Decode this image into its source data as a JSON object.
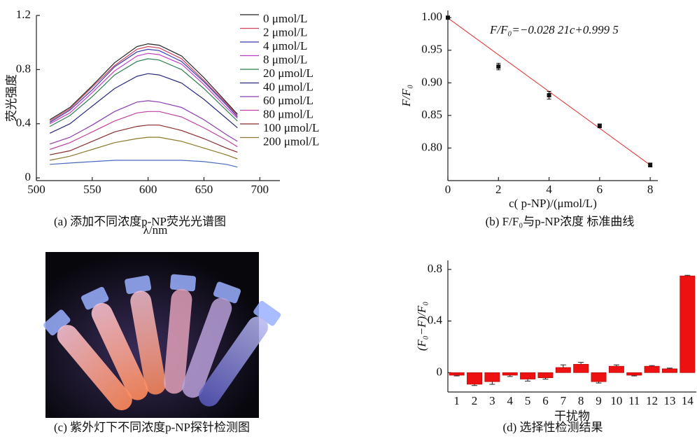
{
  "chart_data": [
    {
      "type": "line",
      "caption": "(a)  添加不同浓度p-NP荧光光谱图",
      "xlabel": "λ/nm",
      "ylabel": "荧光强度",
      "x": [
        512,
        530,
        550,
        570,
        590,
        600,
        610,
        630,
        650,
        670,
        680
      ],
      "xlim": [
        500,
        718
      ],
      "xticks": [
        500,
        550,
        600,
        650,
        700
      ],
      "ylim": [
        -0.02,
        1.2
      ],
      "yticks": [
        0,
        0.4,
        0.8,
        1.2
      ],
      "series": [
        {
          "name": "0 μmol/L",
          "color": "#222222",
          "values": [
            0.43,
            0.52,
            0.68,
            0.85,
            0.97,
            0.99,
            0.98,
            0.9,
            0.74,
            0.56,
            0.47
          ]
        },
        {
          "name": "2 μmol/L",
          "color": "#d0425e",
          "values": [
            0.42,
            0.51,
            0.67,
            0.83,
            0.95,
            0.97,
            0.96,
            0.88,
            0.72,
            0.55,
            0.46
          ]
        },
        {
          "name": "4 μmol/L",
          "color": "#3a3ab0",
          "values": [
            0.41,
            0.5,
            0.65,
            0.82,
            0.93,
            0.95,
            0.94,
            0.86,
            0.71,
            0.54,
            0.45
          ]
        },
        {
          "name": "8 μmol/L",
          "color": "#c03cc8",
          "values": [
            0.4,
            0.48,
            0.63,
            0.79,
            0.9,
            0.92,
            0.91,
            0.84,
            0.69,
            0.52,
            0.44
          ]
        },
        {
          "name": "20 μmol/L",
          "color": "#2e7d4f",
          "values": [
            0.38,
            0.46,
            0.6,
            0.76,
            0.86,
            0.88,
            0.87,
            0.8,
            0.66,
            0.5,
            0.42
          ]
        },
        {
          "name": "40 μmol/L",
          "color": "#2a2a80",
          "values": [
            0.33,
            0.4,
            0.53,
            0.66,
            0.75,
            0.77,
            0.76,
            0.7,
            0.58,
            0.44,
            0.37
          ]
        },
        {
          "name": "60 μmol/L",
          "color": "#8a3cb0",
          "values": [
            0.25,
            0.3,
            0.39,
            0.49,
            0.56,
            0.57,
            0.56,
            0.52,
            0.43,
            0.32,
            0.27
          ]
        },
        {
          "name": "80 μmol/L",
          "color": "#c040a0",
          "values": [
            0.21,
            0.26,
            0.34,
            0.42,
            0.48,
            0.49,
            0.49,
            0.45,
            0.37,
            0.28,
            0.23
          ]
        },
        {
          "name": "100 μmol/L",
          "color": "#8a2a2a",
          "values": [
            0.17,
            0.2,
            0.27,
            0.34,
            0.38,
            0.39,
            0.39,
            0.35,
            0.29,
            0.22,
            0.19
          ]
        },
        {
          "name": "200 μmol/L",
          "color": "#8a7a2a",
          "values": [
            0.13,
            0.16,
            0.21,
            0.26,
            0.29,
            0.3,
            0.3,
            0.27,
            0.22,
            0.17,
            0.14
          ]
        },
        {
          "name": null,
          "color": "#4a6ac0",
          "values": [
            0.1,
            0.11,
            0.12,
            0.13,
            0.13,
            0.13,
            0.13,
            0.13,
            0.12,
            0.1,
            0.08
          ]
        }
      ]
    },
    {
      "type": "scatter",
      "caption": "(b)  F/F₀与p-NP浓度 标准曲线",
      "xlabel": "c( p-NP)/(μmol/L)",
      "ylabel": "F/F₀",
      "annotation": "F/F₀=−0.028 21c+0.999 5",
      "fit": {
        "slope": -0.02821,
        "intercept": 0.9995
      },
      "fit_color": "#e03030",
      "x": [
        0,
        2,
        4,
        6,
        8
      ],
      "values": [
        1.0,
        0.925,
        0.881,
        0.834,
        0.774
      ],
      "errors": [
        0.002,
        0.005,
        0.006,
        0.003,
        0.003
      ],
      "color": "#111111",
      "xlim": [
        0,
        8.3
      ],
      "xticks": [
        0,
        2,
        4,
        6,
        8
      ],
      "ylim": [
        0.75,
        1.011
      ],
      "yticks": [
        {
          "value": 0.8,
          "label": "0.80"
        },
        0.85,
        {
          "value": 0.9,
          "label": "0.90"
        },
        0.95,
        {
          "value": 1.0,
          "label": "1.00"
        }
      ]
    },
    {
      "type": "image",
      "caption": "(c)  紫外灯下不同浓度p-NP探针检测图"
    },
    {
      "type": "bar",
      "caption": "(d)  选择性检测结果",
      "xlabel": "干扰物",
      "ylabel": "(F₀−F)/F₀",
      "color": "#ee1111",
      "categories": [
        "1",
        "2",
        "3",
        "4",
        "5",
        "6",
        "7",
        "8",
        "9",
        "10",
        "11",
        "12",
        "13",
        "14"
      ],
      "values": [
        -0.02,
        -0.09,
        -0.07,
        -0.02,
        -0.05,
        -0.04,
        0.04,
        0.065,
        -0.07,
        0.05,
        -0.02,
        0.05,
        0.03,
        0.75
      ],
      "errors": [
        0.005,
        0.01,
        0.02,
        0.01,
        0.015,
        0.01,
        0.02,
        0.015,
        0.01,
        0.01,
        0.005,
        0.005,
        0.005,
        0.005
      ],
      "ylim": [
        -0.15,
        0.87
      ],
      "yticks": [
        0,
        0.4,
        0.8
      ]
    }
  ]
}
